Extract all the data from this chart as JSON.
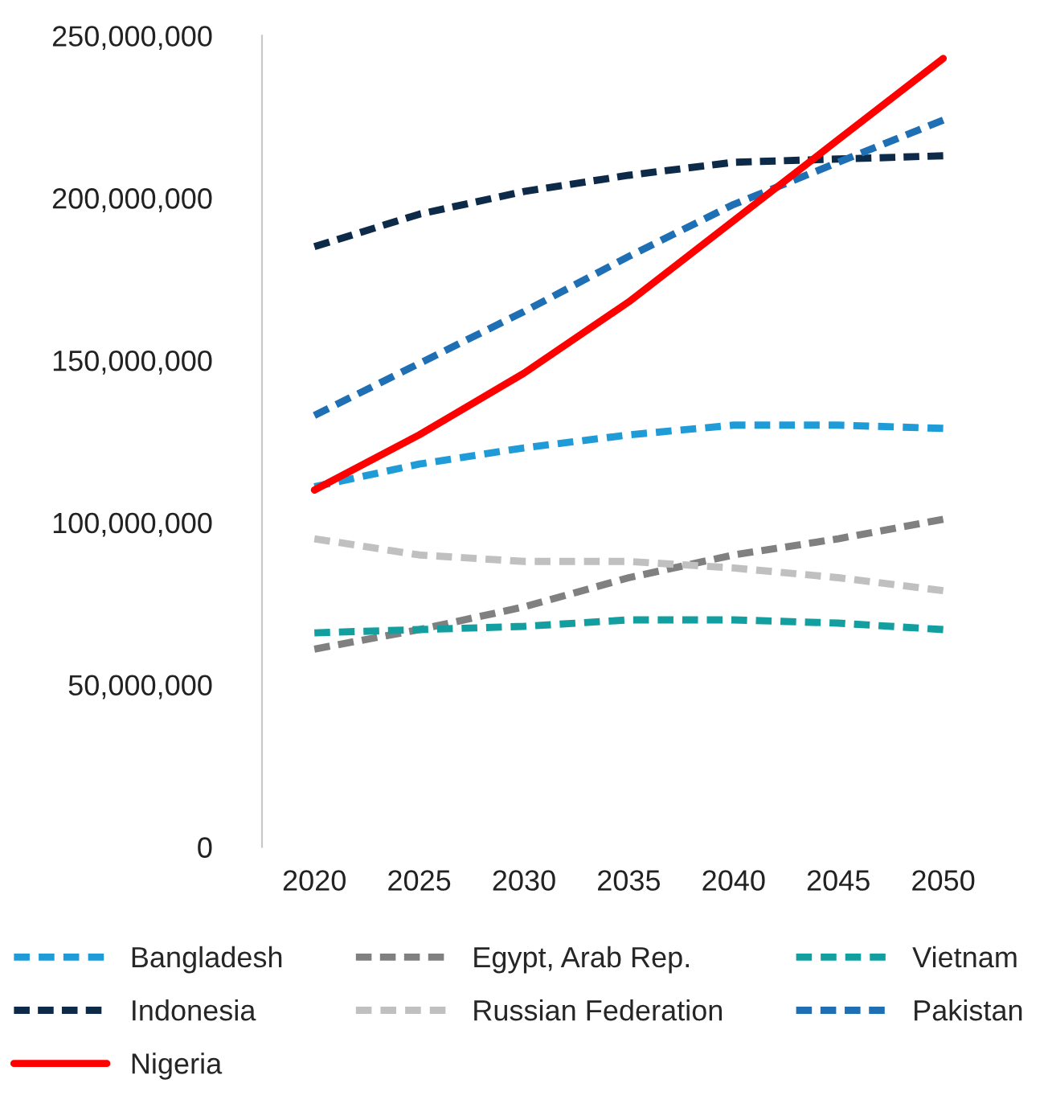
{
  "chart_data": {
    "type": "line",
    "categories": [
      "2020",
      "2025",
      "2030",
      "2035",
      "2040",
      "2045",
      "2050"
    ],
    "series": [
      {
        "name": "Bangladesh",
        "color": "#1f9bd7",
        "line_style": "dashed",
        "values": [
          111000000,
          118000000,
          123000000,
          127000000,
          130000000,
          130000000,
          129000000
        ]
      },
      {
        "name": "Egypt, Arab Rep.",
        "color": "#808080",
        "line_style": "dashed",
        "values": [
          61000000,
          67000000,
          74000000,
          83000000,
          90000000,
          95000000,
          101000000
        ]
      },
      {
        "name": "Vietnam",
        "color": "#139ea0",
        "line_style": "dashed",
        "values": [
          66000000,
          67000000,
          68000000,
          70000000,
          70000000,
          69000000,
          67000000
        ]
      },
      {
        "name": "Indonesia",
        "color": "#0d2a48",
        "line_style": "dashed",
        "values": [
          185000000,
          195000000,
          202000000,
          207000000,
          211000000,
          212000000,
          213000000
        ]
      },
      {
        "name": "Russian Federation",
        "color": "#c0c0c0",
        "line_style": "dashed",
        "values": [
          95000000,
          90000000,
          88000000,
          88000000,
          86000000,
          83000000,
          79000000
        ]
      },
      {
        "name": "Pakistan",
        "color": "#1f6fb4",
        "line_style": "dashed",
        "values": [
          133000000,
          149000000,
          165000000,
          182000000,
          198000000,
          211000000,
          224000000
        ]
      },
      {
        "name": "Nigeria",
        "color": "#ff0000",
        "line_style": "solid",
        "values": [
          110000000,
          127000000,
          146000000,
          168000000,
          193000000,
          218000000,
          243000000
        ]
      }
    ],
    "ylim": [
      0,
      250000000
    ],
    "yticks": [
      0,
      {
        "value": 50000000,
        "label": "50,000,000"
      },
      {
        "value": 100000000,
        "label": "100,000,000"
      },
      {
        "value": 150000000,
        "label": "150,000,000"
      },
      {
        "value": 200000000,
        "label": "200,000,000"
      },
      {
        "value": 250000000,
        "label": "250,000,000"
      }
    ],
    "grid": false,
    "legend": "bottom"
  }
}
